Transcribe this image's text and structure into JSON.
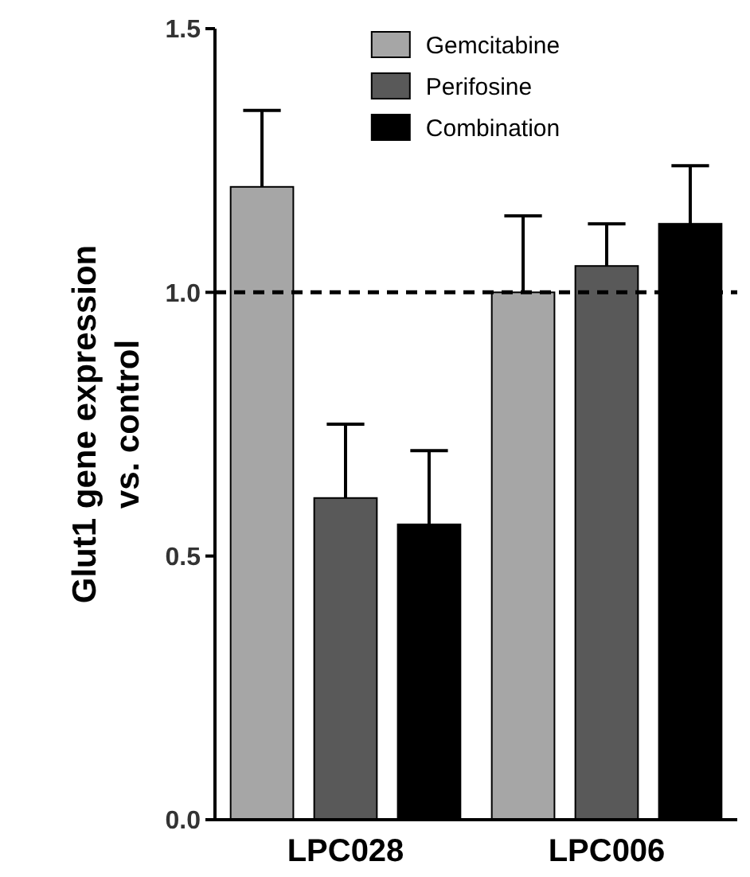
{
  "chart_data": {
    "type": "bar",
    "ylabel": "Glut1 gene expression\nvs. control",
    "categories": [
      "LPC028",
      "LPC006"
    ],
    "series": [
      {
        "name": "Gemcitabine",
        "color": "#a6a6a6",
        "values": [
          1.2,
          1.0
        ],
        "errors": [
          [
            1.2,
            1.345
          ],
          [
            1.0,
            1.145
          ]
        ]
      },
      {
        "name": "Perifosine",
        "color": "#595959",
        "values": [
          0.61,
          1.05
        ],
        "errors": [
          [
            0.61,
            0.75
          ],
          [
            1.05,
            1.13
          ]
        ]
      },
      {
        "name": "Combination",
        "color": "#000000",
        "values": [
          0.56,
          1.13
        ],
        "errors": [
          [
            0.56,
            0.7
          ],
          [
            1.13,
            1.24
          ]
        ]
      }
    ],
    "ylim": [
      0,
      1.5
    ],
    "yticks": [
      {
        "value": 0,
        "label": "0.0"
      },
      {
        "value": 0.5,
        "label": "0.5"
      },
      {
        "value": 1,
        "label": "1.0"
      },
      {
        "value": 1.5,
        "label": "1.5"
      }
    ],
    "ref_lines": [
      {
        "axis": "y",
        "value": 1,
        "line_style": "dashed"
      }
    ],
    "legend": "top right",
    "grid": false
  }
}
